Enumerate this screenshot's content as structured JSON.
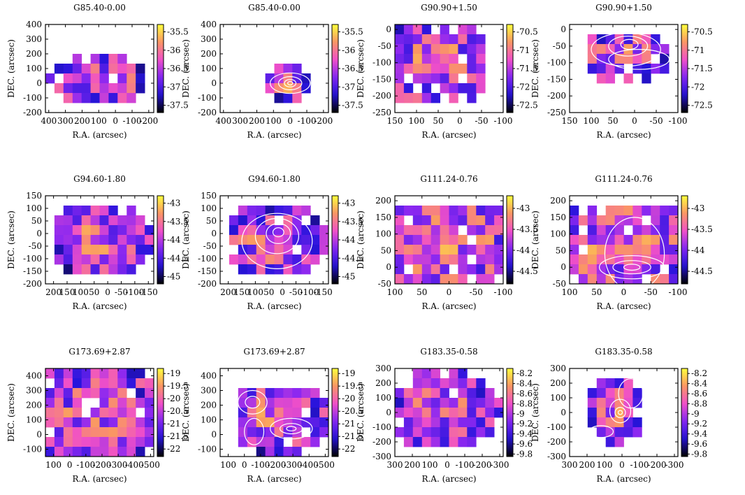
{
  "chart_data": [
    {
      "type": "heatmap",
      "title": "G85.40-0.00",
      "xlabel": "R.A. (arcsec)",
      "ylabel": "DEC. (arcsec)",
      "xlim": [
        420,
        -230
      ],
      "ylim": [
        -200,
        400
      ],
      "xticks": [
        400,
        300,
        200,
        100,
        0,
        -100,
        -200
      ],
      "xtick_labels": [
        "400",
        "300",
        "200",
        "100",
        "0",
        "-100",
        "-200"
      ],
      "yticks": [
        -200,
        -100,
        0,
        100,
        200,
        300,
        400
      ],
      "ytick_labels": [
        "-200",
        "-100",
        "0",
        "100",
        "200",
        "300",
        "400"
      ],
      "colorbar": {
        "min": -37.7,
        "max": -35.3,
        "ticks": [
          -35.5,
          -36,
          -36.5,
          -37,
          -37.5
        ],
        "tick_labels": [
          "-35.5",
          "-36",
          "-36.5",
          "-37",
          "-37.5"
        ]
      },
      "blob": {
        "x0": 420,
        "x1": -200,
        "y0": -180,
        "y1": 260,
        "cx": 100,
        "cy": 20,
        "rx": 300,
        "ry": 170
      },
      "contours": []
    },
    {
      "type": "heatmap",
      "title": "G85.40-0.00",
      "xlabel": "R.A. (arcsec)",
      "ylabel": "DEC. (arcsec)",
      "xlim": [
        420,
        -230
      ],
      "ylim": [
        -200,
        400
      ],
      "xticks": [
        400,
        300,
        200,
        100,
        0,
        -100,
        -200
      ],
      "xtick_labels": [
        "400",
        "300",
        "200",
        "100",
        "0",
        "-100",
        "-200"
      ],
      "yticks": [
        -200,
        -100,
        0,
        100,
        200,
        300,
        400
      ],
      "ytick_labels": [
        "-200",
        "-100",
        "0",
        "100",
        "200",
        "300",
        "400"
      ],
      "colorbar": {
        "min": -37.7,
        "max": -35.3,
        "ticks": [
          -35.5,
          -36,
          -36.5,
          -37,
          -37.5
        ],
        "tick_labels": [
          "-35.5",
          "-36",
          "-36.5",
          "-37",
          "-37.5"
        ]
      },
      "blob": {
        "x0": 150,
        "x1": -200,
        "y0": -130,
        "y1": 140,
        "cx": 20,
        "cy": 0,
        "rx": 160,
        "ry": 110
      },
      "contours": [
        {
          "cx": 0,
          "cy": 0,
          "rx": 120,
          "ry": 70
        },
        {
          "cx": 0,
          "cy": 0,
          "rx": 70,
          "ry": 45
        },
        {
          "cx": 0,
          "cy": 0,
          "rx": 35,
          "ry": 25
        },
        {
          "cx": 0,
          "cy": 0,
          "rx": 15,
          "ry": 12
        }
      ]
    },
    {
      "type": "heatmap",
      "title": "G90.90+1.50",
      "xlabel": "R.A. (arcsec)",
      "ylabel": "DEC. (arcsec)",
      "xlim": [
        150,
        -100
      ],
      "ylim": [
        -250,
        15
      ],
      "xticks": [
        150,
        100,
        50,
        0,
        -50,
        -100
      ],
      "xtick_labels": [
        "150",
        "100",
        "50",
        "0",
        "-50",
        "-100"
      ],
      "yticks": [
        -250,
        -200,
        -150,
        -100,
        -50,
        0
      ],
      "ytick_labels": [
        "-250",
        "-200",
        "-150",
        "-100",
        "-50",
        "0"
      ],
      "colorbar": {
        "min": -72.7,
        "max": -70.3,
        "ticks": [
          -70.5,
          -71,
          -71.5,
          -72,
          -72.5
        ],
        "tick_labels": [
          "-70.5",
          "-71",
          "-71.5",
          "-72",
          "-72.5"
        ]
      },
      "blob": {
        "x0": 150,
        "x1": -60,
        "y0": -230,
        "y1": 15,
        "cx": 60,
        "cy": -90,
        "rx": 130,
        "ry": 160
      },
      "contours": []
    },
    {
      "type": "heatmap",
      "title": "G90.90+1.50",
      "xlabel": "R.A. (arcsec)",
      "ylabel": "DEC. (arcsec)",
      "xlim": [
        150,
        -100
      ],
      "ylim": [
        -250,
        15
      ],
      "xticks": [
        150,
        100,
        50,
        0,
        -50,
        -100
      ],
      "xtick_labels": [
        "150",
        "100",
        "50",
        "0",
        "-50",
        "-100"
      ],
      "yticks": [
        -250,
        -200,
        -150,
        -100,
        -50,
        0
      ],
      "ytick_labels": [
        "-250",
        "-200",
        "-150",
        "-100",
        "-50",
        "0"
      ],
      "colorbar": {
        "min": -72.7,
        "max": -70.3,
        "ticks": [
          -70.5,
          -71,
          -71.5,
          -72,
          -72.5
        ],
        "tick_labels": [
          "-70.5",
          "-71",
          "-71.5",
          "-72",
          "-72.5"
        ]
      },
      "blob": {
        "x0": 110,
        "x1": -70,
        "y0": -150,
        "y1": -20,
        "cx": 25,
        "cy": -80,
        "rx": 120,
        "ry": 80
      },
      "contours": [
        {
          "cx": 20,
          "cy": -60,
          "rx": 80,
          "ry": 50
        },
        {
          "cx": 15,
          "cy": -50,
          "rx": 45,
          "ry": 30
        },
        {
          "cx": 12,
          "cy": -45,
          "rx": 20,
          "ry": 15
        },
        {
          "cx": -10,
          "cy": -90,
          "rx": 70,
          "ry": 30
        }
      ]
    },
    {
      "type": "heatmap",
      "title": "G94.60-1.80",
      "xlabel": "R.A. (arcsec)",
      "ylabel": "DEC. (arcsec)",
      "xlim": [
        230,
        -170
      ],
      "ylim": [
        -200,
        150
      ],
      "xticks": [
        200,
        150,
        100,
        50,
        0,
        -50,
        -100,
        -150
      ],
      "xtick_labels": [
        "200",
        "150",
        "100",
        "50",
        "0",
        "-50",
        "-100",
        "-150"
      ],
      "yticks": [
        -200,
        -150,
        -100,
        -50,
        0,
        50,
        100,
        150
      ],
      "ytick_labels": [
        "-200",
        "-150",
        "-100",
        "-50",
        "0",
        "50",
        "100",
        "150"
      ],
      "colorbar": {
        "min": -45.2,
        "max": -42.8,
        "ticks": [
          -43,
          -43.5,
          -44,
          -44.5,
          -45
        ],
        "tick_labels": [
          "-43",
          "-43.5",
          "-44",
          "-44.5",
          "-45"
        ]
      },
      "blob": {
        "x0": 200,
        "x1": -160,
        "y0": -180,
        "y1": 120,
        "cx": 30,
        "cy": -30,
        "rx": 200,
        "ry": 150
      },
      "contours": []
    },
    {
      "type": "heatmap",
      "title": "G94.60-1.80",
      "xlabel": "R.A. (arcsec)",
      "ylabel": "DEC. (arcsec)",
      "xlim": [
        230,
        -170
      ],
      "ylim": [
        -200,
        150
      ],
      "xticks": [
        200,
        150,
        100,
        50,
        0,
        -50,
        -100,
        -150
      ],
      "xtick_labels": [
        "200",
        "150",
        "100",
        "50",
        "0",
        "-50",
        "-100",
        "-150"
      ],
      "yticks": [
        -200,
        -150,
        -100,
        -50,
        0,
        50,
        100,
        150
      ],
      "ytick_labels": [
        "-200",
        "-150",
        "-100",
        "-50",
        "0",
        "50",
        "100",
        "150"
      ],
      "colorbar": {
        "min": -45.2,
        "max": -42.8,
        "ticks": [
          -43,
          -43.5,
          -44,
          -44.5,
          -45
        ],
        "tick_labels": [
          "-43",
          "-43.5",
          "-44",
          "-44.5",
          "-45"
        ]
      },
      "blob": {
        "x0": 200,
        "x1": -160,
        "y0": -180,
        "y1": 120,
        "cx": 30,
        "cy": -30,
        "rx": 200,
        "ry": 150
      },
      "contours": [
        {
          "cx": 20,
          "cy": -30,
          "rx": 130,
          "ry": 110
        },
        {
          "cx": 20,
          "cy": -10,
          "rx": 80,
          "ry": 70
        },
        {
          "cx": 15,
          "cy": 0,
          "rx": 45,
          "ry": 40
        },
        {
          "cx": 15,
          "cy": 5,
          "rx": 20,
          "ry": 18
        }
      ]
    },
    {
      "type": "heatmap",
      "title": "G111.24-0.76",
      "xlabel": "R.A. (arcsec)",
      "ylabel": "DEC. (arcsec)",
      "xlim": [
        100,
        -100
      ],
      "ylim": [
        -50,
        215
      ],
      "xticks": [
        100,
        50,
        0,
        -50,
        -100
      ],
      "xtick_labels": [
        "100",
        "50",
        "0",
        "-50",
        "-100"
      ],
      "yticks": [
        -50,
        0,
        50,
        100,
        150,
        200
      ],
      "ytick_labels": [
        "-50",
        "0",
        "50",
        "100",
        "150",
        "200"
      ],
      "colorbar": {
        "min": -44.8,
        "max": -42.7,
        "ticks": [
          -43,
          -43.5,
          -44,
          -44.5
        ],
        "tick_labels": [
          "-43",
          "-43.5",
          "-44",
          "-44.5"
        ]
      },
      "blob": {
        "x0": 100,
        "x1": -100,
        "y0": -50,
        "y1": 200,
        "cx": 0,
        "cy": 70,
        "rx": 200,
        "ry": 220
      },
      "contours": []
    },
    {
      "type": "heatmap",
      "title": "G111.24-0.76",
      "xlabel": "R.A. (arcsec)",
      "ylabel": "DEC. (arcsec)",
      "xlim": [
        100,
        -100
      ],
      "ylim": [
        -50,
        215
      ],
      "xticks": [
        100,
        50,
        0,
        -50,
        -100
      ],
      "xtick_labels": [
        "100",
        "50",
        "0",
        "-50",
        "-100"
      ],
      "yticks": [
        -50,
        0,
        50,
        100,
        150,
        200
      ],
      "ytick_labels": [
        "-50",
        "0",
        "50",
        "100",
        "150",
        "200"
      ],
      "colorbar": {
        "min": -44.8,
        "max": -42.7,
        "ticks": [
          -43,
          -43.5,
          -44,
          -44.5
        ],
        "tick_labels": [
          "-43",
          "-43.5",
          "-44",
          "-44.5"
        ]
      },
      "blob": {
        "x0": 100,
        "x1": -100,
        "y0": -50,
        "y1": 200,
        "cx": 0,
        "cy": 70,
        "rx": 200,
        "ry": 220
      },
      "contours": [
        {
          "cx": -15,
          "cy": 0,
          "rx": 60,
          "ry": 35
        },
        {
          "cx": -15,
          "cy": 0,
          "rx": 35,
          "ry": 20
        },
        {
          "cx": -15,
          "cy": 0,
          "rx": 15,
          "ry": 9
        },
        {
          "cx": -20,
          "cy": 40,
          "rx": 55,
          "ry": 110
        }
      ]
    },
    {
      "type": "heatmap",
      "title": "G173.69+2.87",
      "xlabel": "R.A. (arcsec)",
      "ylabel": "DEC. (arcsec)",
      "xlim": [
        150,
        -520
      ],
      "ylim": [
        -150,
        450
      ],
      "xticks": [
        100,
        0,
        -100,
        -200,
        -300,
        -400,
        -500
      ],
      "xtick_labels": [
        "100",
        "0",
        "-100",
        "-200",
        "-300",
        "-400",
        "-500"
      ],
      "yticks": [
        -100,
        0,
        100,
        200,
        300,
        400
      ],
      "ytick_labels": [
        "-100",
        "0",
        "100",
        "200",
        "300",
        "400"
      ],
      "colorbar": {
        "min": -22.3,
        "max": -18.8,
        "ticks": [
          -19,
          -19.5,
          -20,
          -20.5,
          -21,
          -21.5,
          -22
        ],
        "tick_labels": [
          "-19",
          "-19.5",
          "-20",
          "-20.5",
          "-21",
          "-21.5",
          "-22"
        ]
      },
      "blob": {
        "x0": 150,
        "x1": -500,
        "y0": -130,
        "y1": 430,
        "cx": -150,
        "cy": 150,
        "rx": 450,
        "ry": 350
      },
      "contours": []
    },
    {
      "type": "heatmap",
      "title": "G173.69+2.87",
      "xlabel": "R.A. (arcsec)",
      "ylabel": "DEC. (arcsec)",
      "xlim": [
        150,
        -520
      ],
      "ylim": [
        -150,
        450
      ],
      "xticks": [
        100,
        0,
        -100,
        -200,
        -300,
        -400,
        -500
      ],
      "xtick_labels": [
        "100",
        "0",
        "-100",
        "-200",
        "-300",
        "-400",
        "-500"
      ],
      "yticks": [
        -100,
        0,
        100,
        200,
        300,
        400
      ],
      "ytick_labels": [
        "-100",
        "0",
        "100",
        "200",
        "300",
        "400"
      ],
      "colorbar": {
        "min": -22.3,
        "max": -18.8,
        "ticks": [
          -19,
          -19.5,
          -20,
          -20.5,
          -21,
          -21.5,
          -22
        ],
        "tick_labels": [
          "-19",
          "-19.5",
          "-20",
          "-20.5",
          "-21",
          "-21.5",
          "-22"
        ]
      },
      "blob": {
        "x0": 50,
        "x1": -500,
        "y0": -130,
        "y1": 330,
        "cx": -180,
        "cy": 100,
        "rx": 380,
        "ry": 250
      },
      "contours": [
        {
          "cx": -50,
          "cy": 220,
          "rx": 90,
          "ry": 80
        },
        {
          "cx": -50,
          "cy": 220,
          "rx": 45,
          "ry": 40
        },
        {
          "cx": -290,
          "cy": 40,
          "rx": 130,
          "ry": 70
        },
        {
          "cx": -290,
          "cy": 40,
          "rx": 70,
          "ry": 35
        },
        {
          "cx": -290,
          "cy": 40,
          "rx": 30,
          "ry": 15
        },
        {
          "cx": -60,
          "cy": 20,
          "rx": 60,
          "ry": 90
        }
      ]
    },
    {
      "type": "heatmap",
      "title": "G183.35-0.58",
      "xlabel": "R.A. (arcsec)",
      "ylabel": "DEC. (arcsec)",
      "xlim": [
        300,
        -320
      ],
      "ylim": [
        -300,
        300
      ],
      "xticks": [
        300,
        200,
        100,
        0,
        -100,
        -200,
        -300
      ],
      "xtick_labels": [
        "300",
        "200",
        "100",
        "0",
        "-100",
        "-200",
        "-300"
      ],
      "yticks": [
        -300,
        -200,
        -100,
        0,
        100,
        200,
        300
      ],
      "ytick_labels": [
        "-300",
        "-200",
        "-100",
        "0",
        "100",
        "200",
        "300"
      ],
      "colorbar": {
        "min": -9.85,
        "max": -8.1,
        "ticks": [
          -8.2,
          -8.4,
          -8.6,
          -8.8,
          -9,
          -9.2,
          -9.4,
          -9.6,
          -9.8
        ],
        "tick_labels": [
          "-8.2",
          "-8.4",
          "-8.6",
          "-8.8",
          "-9",
          "-9.2",
          "-9.4",
          "-9.6",
          "-9.8"
        ]
      },
      "blob": {
        "x0": 300,
        "x1": -320,
        "y0": -220,
        "y1": 300,
        "cx": 20,
        "cy": 20,
        "rx": 330,
        "ry": 280
      },
      "contours": []
    },
    {
      "type": "heatmap",
      "title": "G183.35-0.58",
      "xlabel": "R.A. (arcsec)",
      "ylabel": "DEC. (arcsec)",
      "xlim": [
        300,
        -320
      ],
      "ylim": [
        -300,
        300
      ],
      "xticks": [
        300,
        200,
        100,
        0,
        -100,
        -200,
        -300
      ],
      "xtick_labels": [
        "300",
        "200",
        "100",
        "0",
        "-100",
        "-200",
        "-300"
      ],
      "yticks": [
        -300,
        -200,
        -100,
        0,
        100,
        200,
        300
      ],
      "ytick_labels": [
        "-300",
        "-200",
        "-100",
        "0",
        "100",
        "200",
        "300"
      ],
      "colorbar": {
        "min": -9.85,
        "max": -8.1,
        "ticks": [
          -8.2,
          -8.4,
          -8.6,
          -8.8,
          -9,
          -9.2,
          -9.4,
          -9.6,
          -9.8
        ],
        "tick_labels": [
          "-8.2",
          "-8.4",
          "-8.6",
          "-8.8",
          "-9",
          "-9.2",
          "-9.4",
          "-9.6",
          "-9.8"
        ]
      },
      "blob": {
        "x0": 250,
        "x1": -150,
        "y0": -220,
        "y1": 260,
        "cx": 40,
        "cy": 10,
        "rx": 170,
        "ry": 220
      },
      "contours": [
        {
          "cx": 10,
          "cy": 10,
          "rx": 60,
          "ry": 80
        },
        {
          "cx": 10,
          "cy": 0,
          "rx": 30,
          "ry": 35
        },
        {
          "cx": 10,
          "cy": 0,
          "rx": 12,
          "ry": 14
        },
        {
          "cx": 120,
          "cy": -130,
          "rx": 70,
          "ry": 40
        },
        {
          "cx": -50,
          "cy": 130,
          "rx": 70,
          "ry": 100
        }
      ]
    }
  ]
}
